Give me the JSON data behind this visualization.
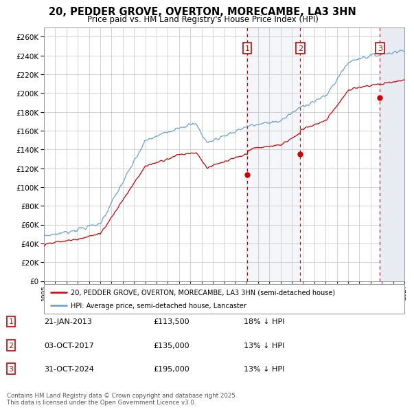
{
  "title_line1": "20, PEDDER GROVE, OVERTON, MORECAMBE, LA3 3HN",
  "title_line2": "Price paid vs. HM Land Registry's House Price Index (HPI)",
  "ylim": [
    0,
    270000
  ],
  "yticks": [
    0,
    20000,
    40000,
    60000,
    80000,
    100000,
    120000,
    140000,
    160000,
    180000,
    200000,
    220000,
    240000,
    260000
  ],
  "sale_info": [
    {
      "label": "1",
      "date": "21-JAN-2013",
      "price": "£113,500",
      "hpi": "18% ↓ HPI"
    },
    {
      "label": "2",
      "date": "03-OCT-2017",
      "price": "£135,000",
      "hpi": "13% ↓ HPI"
    },
    {
      "label": "3",
      "date": "31-OCT-2024",
      "price": "£195,000",
      "hpi": "13% ↓ HPI"
    }
  ],
  "sale_year_floats": [
    2013.055,
    2017.751,
    2024.835
  ],
  "sale_prices": [
    113500,
    135000,
    195000
  ],
  "legend_red": "20, PEDDER GROVE, OVERTON, MORECAMBE, LA3 3HN (semi-detached house)",
  "legend_blue": "HPI: Average price, semi-detached house, Lancaster",
  "footer": "Contains HM Land Registry data © Crown copyright and database right 2025.\nThis data is licensed under the Open Government Licence v3.0.",
  "red_color": "#cc0000",
  "blue_color": "#6699cc",
  "grid_color": "#cccccc",
  "vline_color": "#cc0000",
  "sale_box_color": "#cc0000"
}
